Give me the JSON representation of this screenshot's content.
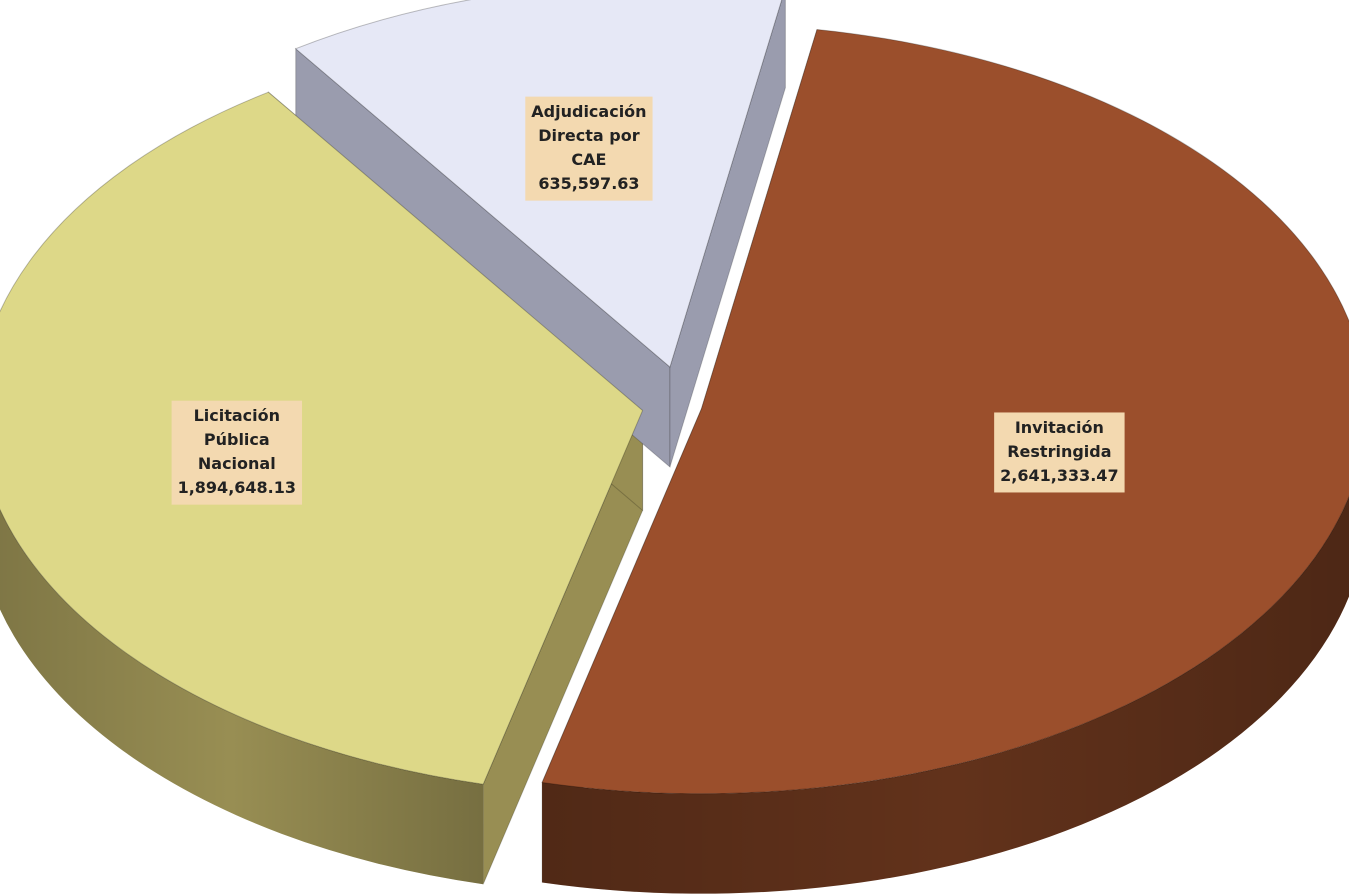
{
  "chart_data": {
    "type": "pie",
    "style": "3d-exploded",
    "title": "",
    "slices": [
      {
        "label_lines": [
          "Invitación",
          "Restringida"
        ],
        "value": 2641333.47,
        "value_label": "2,641,333.47",
        "color": "#9b4f2c",
        "side_color": "#62321b"
      },
      {
        "label_lines": [
          "Licitación",
          "Pública",
          "Nacional"
        ],
        "value": 1894648.13,
        "value_label": "1,894,648.13",
        "color": "#ddd888",
        "side_color": "#988e53"
      },
      {
        "label_lines": [
          "Adjudicación",
          "Directa por",
          "CAE"
        ],
        "value": 635597.63,
        "value_label": "635,597.63",
        "color": "#e6e8f6",
        "side_color": "#9a9cae"
      }
    ],
    "label_box_color": "#f3d9b0"
  }
}
